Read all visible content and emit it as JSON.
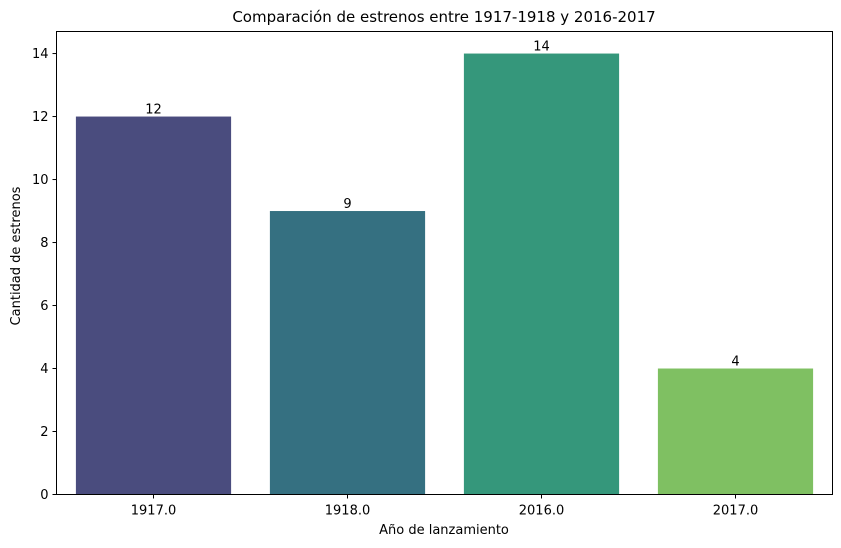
{
  "chart_data": {
    "type": "bar",
    "title": "Comparación de estrenos entre 1917-1918 y 2016-2017",
    "xlabel": "Año de lanzamiento",
    "ylabel": "Cantidad de estrenos",
    "categories": [
      "1917.0",
      "1918.0",
      "2016.0",
      "2017.0"
    ],
    "values": [
      12,
      9,
      14,
      4
    ],
    "data_labels": [
      "12",
      "9",
      "14",
      "4"
    ],
    "colors": [
      "#482878",
      "#26828e",
      "#35b779",
      "#7ad151"
    ],
    "bar_colors_rendered": [
      "#4a4c7e",
      "#357081",
      "#35977b",
      "#7fc062"
    ],
    "ylim": [
      0,
      14.7
    ],
    "yticks": [
      0,
      2,
      4,
      6,
      8,
      10,
      12,
      14
    ],
    "ytick_labels": [
      "0",
      "2",
      "4",
      "6",
      "8",
      "10",
      "12",
      "14"
    ],
    "grid": false,
    "legend": "none"
  }
}
